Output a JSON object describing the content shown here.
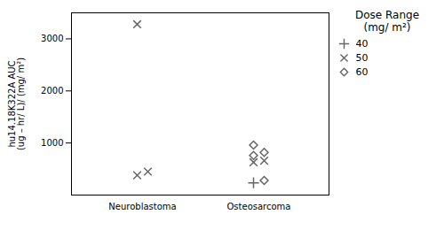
{
  "chart_data": {
    "type": "scatter",
    "categories": [
      "Neuroblastoma",
      "Osteosarcoma"
    ],
    "series": [
      {
        "name": "40",
        "marker": "plus",
        "x": [
          "Osteosarcoma"
        ],
        "values": [
          235
        ]
      },
      {
        "name": "50",
        "marker": "x",
        "x": [
          "Neuroblastoma",
          "Neuroblastoma",
          "Neuroblastoma",
          "Osteosarcoma",
          "Osteosarcoma"
        ],
        "values": [
          450,
          380,
          3280,
          630,
          660
        ]
      },
      {
        "name": "60",
        "marker": "diamond",
        "x": [
          "Osteosarcoma",
          "Osteosarcoma",
          "Osteosarcoma",
          "Osteosarcoma"
        ],
        "values": [
          280,
          760,
          820,
          960
        ]
      }
    ],
    "ylabel": "hu14.18K322A AUC\n(ug – hr/ L)/ (mg/ m²)",
    "ylim": [
      0,
      3500
    ],
    "yticks": [
      1000,
      2000,
      3000
    ],
    "legend_title": "Dose Range\n(mg/ m²)",
    "legend": "right",
    "color": "#666666"
  }
}
